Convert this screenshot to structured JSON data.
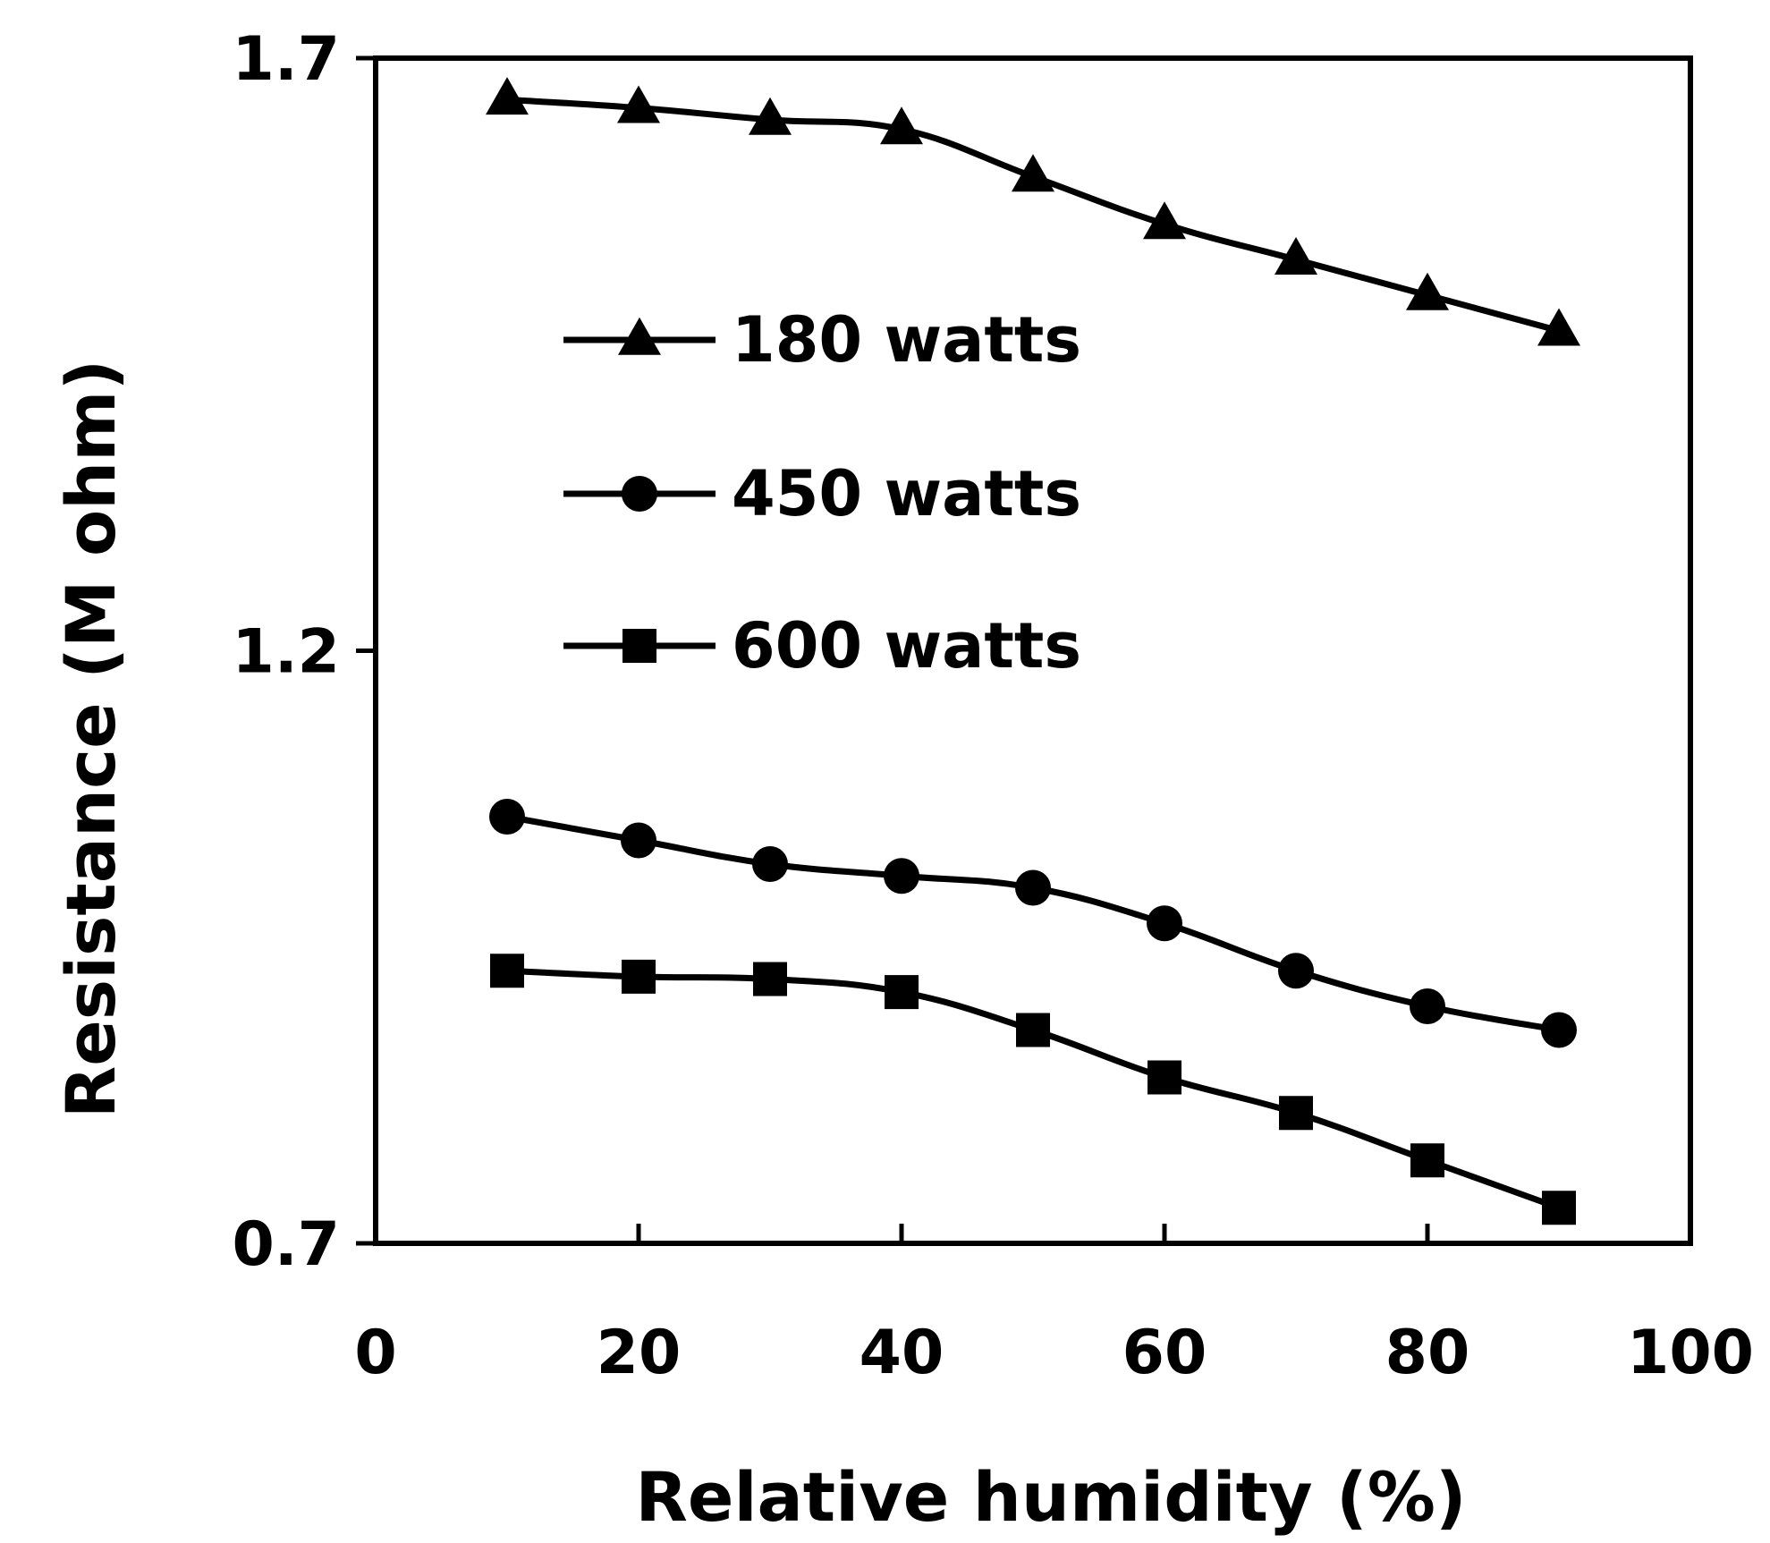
{
  "chart_data": {
    "type": "line",
    "title": "",
    "xlabel": "Relative humidity (%)",
    "ylabel": "Resistance (M ohm)",
    "xlim": [
      0,
      100
    ],
    "ylim": [
      0.7,
      1.7
    ],
    "x_ticks": [
      0,
      20,
      40,
      60,
      80,
      100
    ],
    "x_tick_labels": [
      "0",
      "20",
      "40",
      "60",
      "80",
      "100"
    ],
    "y_ticks": [
      0.7,
      1.2,
      1.7
    ],
    "y_tick_labels": [
      "0.7",
      "1.2",
      "1.7"
    ],
    "grid": false,
    "legend_position": "upper-middle",
    "x": [
      10,
      20,
      30,
      40,
      50,
      60,
      70,
      80,
      90
    ],
    "series": [
      {
        "name": "180 watts",
        "marker": "triangle",
        "values": [
          1.665,
          1.658,
          1.648,
          1.64,
          1.6,
          1.56,
          1.53,
          1.5,
          1.47
        ]
      },
      {
        "name": "450 watts",
        "marker": "circle",
        "values": [
          1.06,
          1.04,
          1.02,
          1.01,
          1.0,
          0.97,
          0.93,
          0.9,
          0.88
        ]
      },
      {
        "name": "600 watts",
        "marker": "square",
        "values": [
          0.93,
          0.925,
          0.923,
          0.912,
          0.88,
          0.84,
          0.81,
          0.77,
          0.73
        ]
      }
    ]
  }
}
